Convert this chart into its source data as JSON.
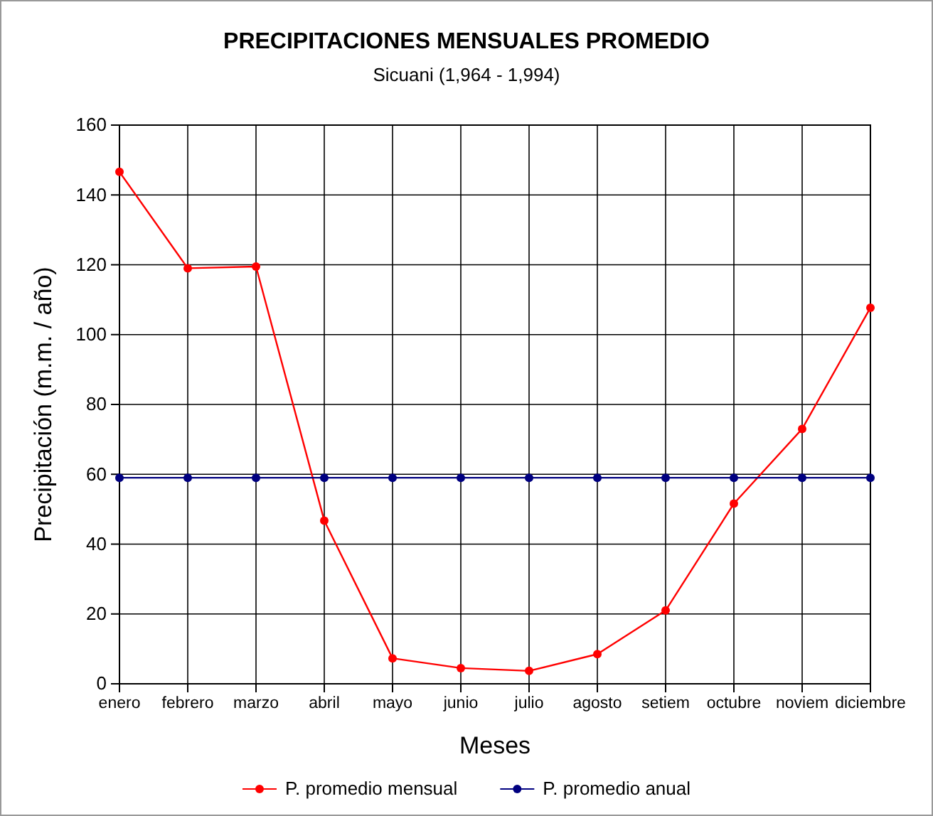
{
  "chart_data": {
    "type": "line",
    "title": "PRECIPITACIONES MENSUALES PROMEDIO",
    "subtitle": "Sicuani (1,964 - 1,994)",
    "xlabel": "Meses",
    "ylabel": "Precipitación (m.m. / año)",
    "categories": [
      "enero",
      "febrero",
      "marzo",
      "abril",
      "mayo",
      "junio",
      "julio",
      "agosto",
      "setiem",
      "octubre",
      "noviem",
      "diciembre"
    ],
    "series": [
      {
        "name": "P. promedio mensual",
        "color": "#ff0000",
        "values": [
          146.6,
          119,
          119.5,
          46.7,
          7.3,
          4.5,
          3.7,
          8.5,
          21,
          51.6,
          73,
          107.7
        ]
      },
      {
        "name": "P. promedio anual",
        "color": "#000080",
        "values": [
          59,
          59,
          59,
          59,
          59,
          59,
          59,
          59,
          59,
          59,
          59,
          59
        ]
      }
    ],
    "ylim": [
      0,
      160
    ],
    "yticks": [
      0,
      20,
      40,
      60,
      80,
      100,
      120,
      140,
      160
    ],
    "grid": true,
    "legend": "bottom",
    "marker": "circle",
    "line_style": "solid"
  }
}
